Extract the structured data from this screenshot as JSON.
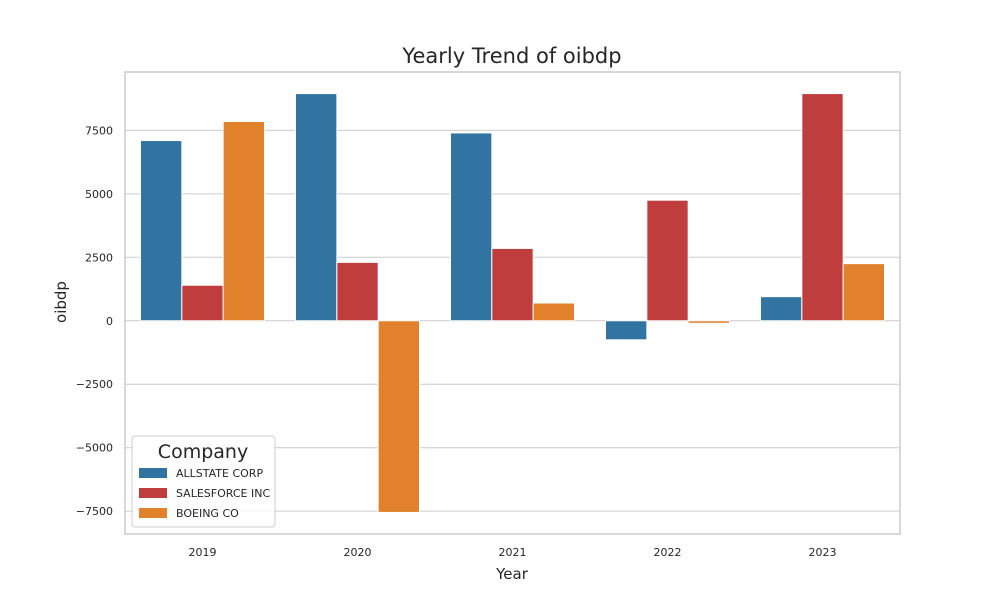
{
  "chart_data": {
    "type": "bar",
    "title": "Yearly Trend of oibdp",
    "xlabel": "Year",
    "ylabel": "oibdp",
    "categories": [
      "2019",
      "2020",
      "2021",
      "2022",
      "2023"
    ],
    "series": [
      {
        "name": "ALLSTATE CORP",
        "color": "#3274a1",
        "values": [
          7100,
          8950,
          7400,
          -750,
          950
        ]
      },
      {
        "name": "SALESFORCE INC",
        "color": "#c03d3e",
        "values": [
          1400,
          2300,
          2850,
          4750,
          8950
        ]
      },
      {
        "name": "BOEING CO",
        "color": "#e1812c",
        "values": [
          7850,
          -7550,
          700,
          -100,
          2250
        ]
      }
    ],
    "ylim": [
      -8400,
      9800
    ],
    "yticks": [
      -7500,
      -5000,
      -2500,
      0,
      2500,
      5000,
      7500
    ],
    "ytick_labels": [
      "−7500",
      "−5000",
      "−2500",
      "0",
      "2500",
      "5000",
      "7500"
    ],
    "grid": true,
    "legend": {
      "title": "Company",
      "placement": "lower-left"
    }
  }
}
